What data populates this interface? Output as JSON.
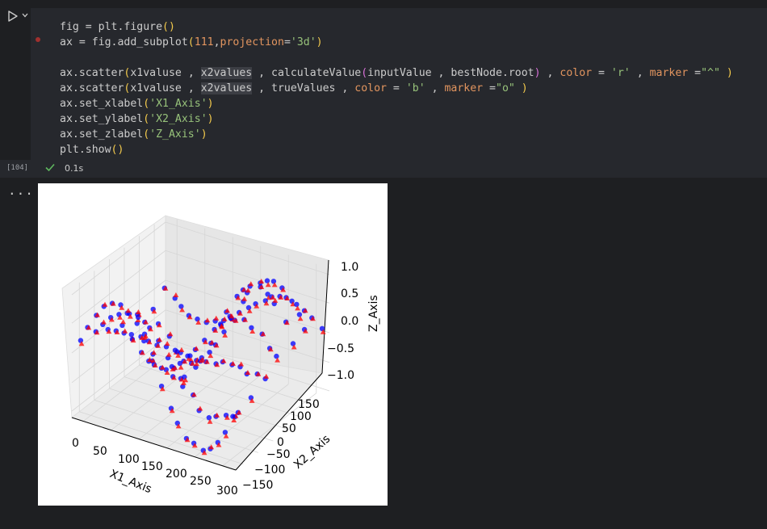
{
  "cell": {
    "exec_count": "[104]",
    "duration": "0.1s",
    "more_label": "..."
  },
  "code": {
    "l1": {
      "a": "fig = plt.figure",
      "b": "()"
    },
    "l2": {
      "a": "ax = fig.add_subplot",
      "b": "(",
      "n": "111",
      "c": ",",
      "k": "projection",
      "d": "=",
      "s": "'3d'",
      "e": ")"
    },
    "l4": {
      "a": "ax.scatter",
      "b": "(",
      "c": "x1valuse , ",
      "h": "x2values",
      "d": " , calculateValue",
      "e": "(",
      "f": "inputValue , bestNode.root",
      "g": ")",
      "i": " , ",
      "k1": "color",
      "j": " = ",
      "s1": "'r'",
      "m": " , ",
      "k2": "marker",
      "o": " =",
      "s2": "\"^\"",
      "p": " )"
    },
    "l5": {
      "a": "ax.scatter",
      "b": "(",
      "c": "x1valuse , ",
      "h": "x2values",
      "d": " , trueValues , ",
      "k1": "color",
      "j": " = ",
      "s1": "'b'",
      "m": " , ",
      "k2": "marker",
      "o": " =",
      "s2": "\"o\"",
      "p": " )"
    },
    "l6": {
      "a": "ax.set_xlabel",
      "b": "(",
      "s": "'X1_Axis'",
      "c": ")"
    },
    "l7": {
      "a": "ax.set_ylabel",
      "b": "(",
      "s": "'X2_Axis'",
      "c": ")"
    },
    "l8": {
      "a": "ax.set_zlabel",
      "b": "(",
      "s": "'Z_Axis'",
      "c": ")"
    },
    "l9": {
      "a": "plt.show",
      "b": "()"
    }
  },
  "colors": {
    "background": "#1e1f22",
    "editor": "#26282d",
    "string": "#97c27a",
    "number": "#e2955f",
    "paren": "#f2c94c",
    "check": "#5fb85f",
    "red_series": "#ff0000",
    "blue_series": "#0000ff"
  },
  "chart_data": {
    "type": "scatter",
    "projection": "3d",
    "xlabel": "X1_Axis",
    "ylabel": "X2_Axis",
    "zlabel": "Z_Axis",
    "xticks": [
      "0",
      "50",
      "100",
      "150",
      "200",
      "250",
      "300"
    ],
    "yticks": [
      "−150",
      "−100",
      "−50",
      "0",
      "50",
      "100",
      "150"
    ],
    "zticks": [
      "1.0",
      "0.5",
      "0.0",
      "−0.5",
      "−1.0"
    ],
    "xlim": [
      0,
      300
    ],
    "ylim": [
      -150,
      150
    ],
    "zlim": [
      -1,
      1
    ],
    "grid": true,
    "series": [
      {
        "color": "r",
        "marker": "^"
      },
      {
        "color": "b",
        "marker": "o"
      }
    ]
  }
}
